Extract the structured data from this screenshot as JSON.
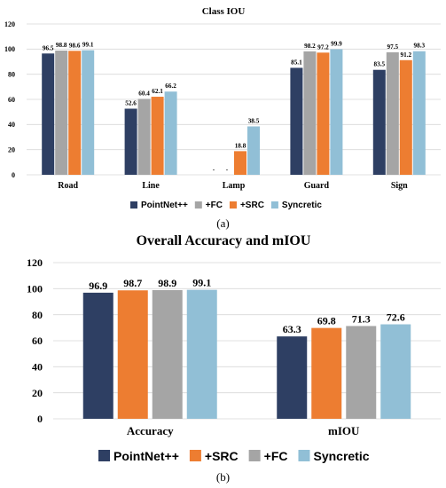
{
  "chart_data": [
    {
      "type": "bar",
      "title": "Class IOU",
      "categories": [
        "Road",
        "Line",
        "Lamp",
        "Guard",
        "Sign"
      ],
      "ylim": [
        0,
        120
      ],
      "yticks": [
        "0",
        "20",
        "40",
        "60",
        "80",
        "100",
        "120"
      ],
      "grid": true,
      "legend_position": "bottom",
      "series": [
        {
          "name": "PointNet++",
          "color": "#2e3f63",
          "values": [
            96.5,
            52.6,
            0,
            85.1,
            83.5
          ],
          "labels": [
            "96.5",
            "52.6",
            "-",
            "85.1",
            "83.5"
          ]
        },
        {
          "name": "+FC",
          "color": "#a5a5a5",
          "values": [
            98.8,
            60.4,
            0,
            98.2,
            97.5
          ],
          "labels": [
            "98.8",
            "60.4",
            "-",
            "98.2",
            "97.5"
          ]
        },
        {
          "name": "+SRC",
          "color": "#ed7d31",
          "values": [
            98.6,
            62.1,
            18.8,
            97.2,
            91.2
          ],
          "labels": [
            "98.6",
            "62.1",
            "18.8",
            "97.2",
            "91.2"
          ]
        },
        {
          "name": "Syncretic",
          "color": "#91bfd6",
          "values": [
            99.1,
            66.2,
            38.5,
            99.9,
            98.3
          ],
          "labels": [
            "99.1",
            "66.2",
            "38.5",
            "99.9",
            "98.3"
          ]
        }
      ],
      "caption": "(a)"
    },
    {
      "type": "bar",
      "title": "Overall Accuracy and mIOU",
      "categories": [
        "Accuracy",
        "mIOU"
      ],
      "ylim": [
        0,
        120
      ],
      "yticks": [
        "0",
        "20",
        "40",
        "60",
        "80",
        "100",
        "120"
      ],
      "grid": true,
      "legend_position": "bottom",
      "series": [
        {
          "name": "PointNet++",
          "color": "#2e3f63",
          "values": [
            96.9,
            63.3
          ],
          "labels": [
            "96.9",
            "63.3"
          ]
        },
        {
          "name": "+SRC",
          "color": "#ed7d31",
          "values": [
            98.7,
            69.8
          ],
          "labels": [
            "98.7",
            "69.8"
          ]
        },
        {
          "name": "+FC",
          "color": "#a5a5a5",
          "values": [
            98.9,
            71.3
          ],
          "labels": [
            "98.9",
            "71.3"
          ]
        },
        {
          "name": "Syncretic",
          "color": "#91bfd6",
          "values": [
            99.1,
            72.6
          ],
          "labels": [
            "99.1",
            "72.6"
          ]
        }
      ],
      "caption": "(b)"
    }
  ]
}
